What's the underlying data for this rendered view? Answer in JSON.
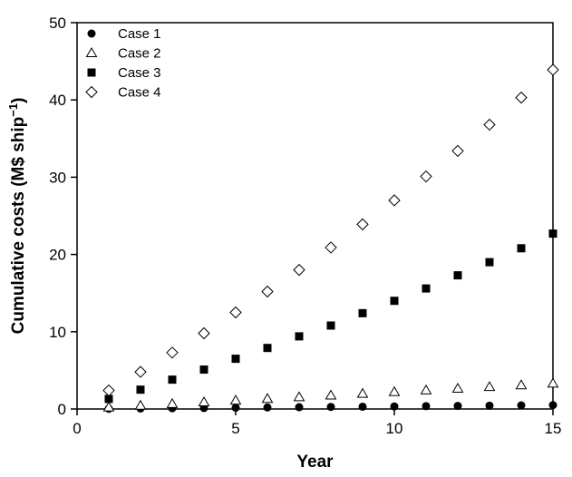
{
  "chart_data": {
    "type": "scatter",
    "title": "",
    "xlabel": "Year",
    "ylabel_main": "Cumulative costs (M$ ship",
    "ylabel_sup": "−1",
    "ylabel_close": ")",
    "xlim": [
      0,
      15
    ],
    "ylim": [
      0,
      50
    ],
    "xticks": [
      0,
      5,
      10,
      15
    ],
    "xtick_labels": [
      "0",
      "5",
      "10",
      "15"
    ],
    "yticks": [
      0,
      10,
      20,
      30,
      40,
      50
    ],
    "ytick_labels": [
      "0",
      "10",
      "20",
      "30",
      "40",
      "50"
    ],
    "grid": false,
    "legend_position": "top-left",
    "x": [
      1,
      2,
      3,
      4,
      5,
      6,
      7,
      8,
      9,
      10,
      11,
      12,
      13,
      14,
      15
    ],
    "series": [
      {
        "name": "Case 1",
        "marker": "filled-circle",
        "values": [
          0.03,
          0.07,
          0.1,
          0.13,
          0.17,
          0.2,
          0.23,
          0.27,
          0.3,
          0.33,
          0.37,
          0.4,
          0.43,
          0.47,
          0.5
        ]
      },
      {
        "name": "Case 2",
        "marker": "open-triangle",
        "values": [
          0.22,
          0.44,
          0.66,
          0.88,
          1.1,
          1.32,
          1.54,
          1.76,
          1.98,
          2.2,
          2.42,
          2.64,
          2.86,
          3.08,
          3.3
        ]
      },
      {
        "name": "Case 3",
        "marker": "filled-square",
        "values": [
          1.3,
          2.5,
          3.8,
          5.1,
          6.5,
          7.9,
          9.4,
          10.8,
          12.4,
          14.0,
          15.6,
          17.3,
          19.0,
          20.8,
          22.7
        ]
      },
      {
        "name": "Case 4",
        "marker": "open-diamond",
        "values": [
          2.4,
          4.8,
          7.3,
          9.8,
          12.5,
          15.2,
          18.0,
          20.9,
          23.9,
          27.0,
          30.1,
          33.4,
          36.8,
          40.3,
          43.9
        ]
      }
    ]
  }
}
